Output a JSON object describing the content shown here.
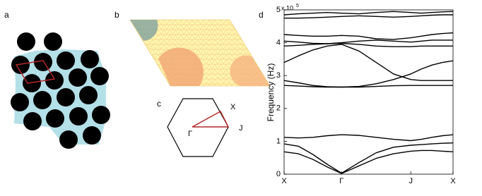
{
  "panel_labels": [
    "a",
    "b",
    "c",
    "d"
  ],
  "brillouin_zone": {
    "labels": [
      "X",
      "J",
      "Γ"
    ]
  },
  "chart_data": {
    "type": "line",
    "y_label": "Frequency (Hz)",
    "y_multiplier": "x 10",
    "y_multiplier_exponent": "5",
    "x": [
      0,
      0.085,
      0.17,
      0.255,
      0.34,
      0.4425,
      0.545,
      0.6475,
      0.75,
      0.8125,
      0.875,
      0.9375,
      1
    ],
    "xlim": [
      0,
      1
    ],
    "xticks": [
      {
        "value": 0,
        "label": "X"
      },
      {
        "value": 0.34,
        "label": "Γ"
      },
      {
        "value": 0.75,
        "label": "J"
      },
      {
        "value": 1,
        "label": "X"
      }
    ],
    "ylim": [
      0,
      5
    ],
    "yticks": [
      0,
      1,
      2,
      3,
      4,
      5
    ],
    "grid": false,
    "series": [
      {
        "color": "#000000",
        "values": [
          0.68,
          0.62,
          0.45,
          0.22,
          0.02,
          0.25,
          0.48,
          0.62,
          0.7,
          0.72,
          0.72,
          0.7,
          0.68
        ]
      },
      {
        "color": "#000000",
        "values": [
          0.92,
          0.85,
          0.6,
          0.3,
          0.03,
          0.35,
          0.65,
          0.82,
          0.88,
          0.9,
          0.92,
          0.94,
          0.95
        ]
      },
      {
        "color": "#000000",
        "values": [
          1.12,
          1.1,
          1.12,
          1.17,
          1.2,
          1.18,
          1.12,
          1.06,
          1.02,
          1.06,
          1.12,
          1.17,
          1.2
        ]
      },
      {
        "color": "#000000",
        "values": [
          2.7,
          2.68,
          2.66,
          2.65,
          2.65,
          2.65,
          2.67,
          2.69,
          2.7,
          2.7,
          2.7,
          2.7,
          2.7
        ]
      },
      {
        "color": "#000000",
        "values": [
          2.85,
          2.78,
          2.7,
          2.66,
          2.65,
          2.67,
          2.75,
          2.88,
          3.05,
          3.2,
          3.32,
          3.4,
          3.45
        ]
      },
      {
        "color": "#000000",
        "values": [
          3.4,
          3.6,
          3.78,
          3.9,
          3.95,
          3.75,
          3.4,
          3.05,
          2.88,
          2.85,
          2.85,
          2.85,
          2.85
        ]
      },
      {
        "color": "#000000",
        "values": [
          3.9,
          3.92,
          3.95,
          3.97,
          3.98,
          3.95,
          3.9,
          3.88,
          3.88,
          3.9,
          3.9,
          3.9,
          3.9
        ]
      },
      {
        "color": "#000000",
        "values": [
          4.05,
          4.02,
          3.98,
          3.97,
          4.0,
          4.05,
          4.08,
          4.05,
          4.02,
          4.05,
          4.08,
          4.08,
          4.08
        ]
      },
      {
        "color": "#000000",
        "values": [
          4.25,
          4.22,
          4.2,
          4.2,
          4.22,
          4.2,
          4.12,
          4.1,
          4.15,
          4.2,
          4.25,
          4.28,
          4.3
        ]
      },
      {
        "color": "#000000",
        "values": [
          4.75,
          4.75,
          4.76,
          4.78,
          4.8,
          4.82,
          4.8,
          4.78,
          4.8,
          4.82,
          4.84,
          4.85,
          4.85
        ]
      },
      {
        "color": "#000000",
        "values": [
          4.85,
          4.88,
          4.9,
          4.92,
          4.9,
          4.88,
          4.92,
          4.95,
          4.92,
          4.9,
          4.92,
          4.94,
          4.95
        ]
      }
    ]
  }
}
